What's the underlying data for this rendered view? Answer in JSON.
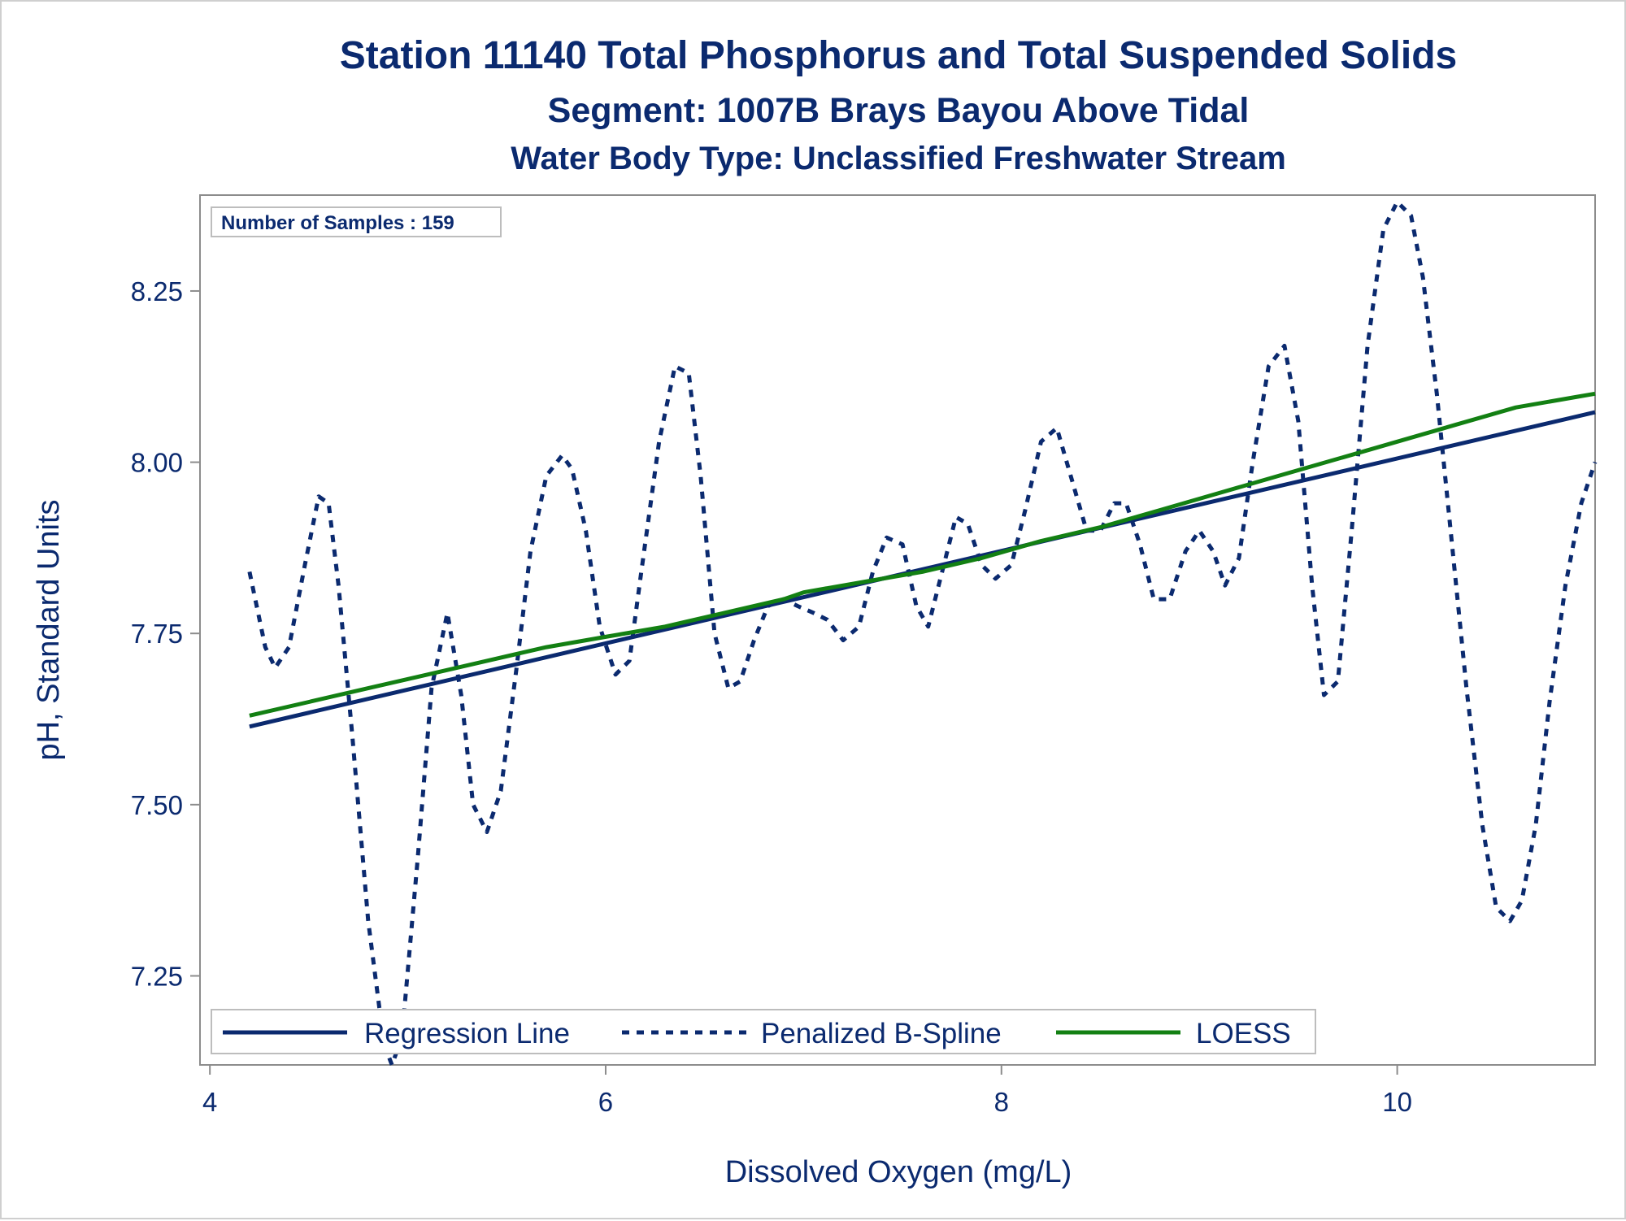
{
  "chart_data": {
    "type": "line",
    "title": "Station 11140  Total Phosphorus and Total Suspended Solids",
    "subtitle": "Segment: 1007B  Brays Bayou Above Tidal",
    "subtitle2": "Water Body Type: Unclassified Freshwater Stream",
    "xlabel": "Dissolved Oxygen (mg/L)",
    "ylabel": "pH, Standard Units",
    "xlim": [
      3.95,
      11.0
    ],
    "ylim": [
      7.12,
      8.39
    ],
    "x_ticks": [
      4,
      6,
      8,
      10
    ],
    "x_tick_labels": [
      "4",
      "6",
      "8",
      "10"
    ],
    "y_ticks": [
      7.25,
      7.5,
      7.75,
      8.0,
      8.25
    ],
    "y_tick_labels": [
      "7.25",
      "7.50",
      "7.75",
      "8.00",
      "8.25"
    ],
    "grid": false,
    "legend_position": "bottom-inside",
    "inset_label": "Number of Samples : 159",
    "series": [
      {
        "name": "Regression Line",
        "style": "solid",
        "color": "#0b2a6f",
        "x": [
          4.2,
          11.0
        ],
        "y": [
          7.614,
          8.073
        ]
      },
      {
        "name": "Penalized B-Spline",
        "style": "dashed",
        "color": "#0b2a6f",
        "x": [
          4.2,
          4.28,
          4.33,
          4.4,
          4.48,
          4.55,
          4.6,
          4.65,
          4.72,
          4.8,
          4.88,
          4.92,
          4.97,
          5.05,
          5.12,
          5.2,
          5.27,
          5.33,
          5.4,
          5.47,
          5.55,
          5.62,
          5.7,
          5.78,
          5.83,
          5.9,
          5.97,
          6.05,
          6.12,
          6.18,
          6.27,
          6.35,
          6.42,
          6.48,
          6.55,
          6.62,
          6.68,
          6.75,
          6.82,
          6.9,
          6.97,
          7.05,
          7.12,
          7.2,
          7.28,
          7.35,
          7.42,
          7.5,
          7.57,
          7.63,
          7.7,
          7.77,
          7.83,
          7.9,
          7.97,
          8.05,
          8.12,
          8.2,
          8.28,
          8.35,
          8.43,
          8.5,
          8.57,
          8.63,
          8.7,
          8.77,
          8.85,
          8.93,
          9.0,
          9.07,
          9.13,
          9.2,
          9.27,
          9.35,
          9.43,
          9.5,
          9.57,
          9.63,
          9.7,
          9.77,
          9.85,
          9.93,
          10.0,
          10.07,
          10.13,
          10.2,
          10.27,
          10.35,
          10.43,
          10.5,
          10.57,
          10.63,
          10.7,
          10.77,
          10.85,
          10.93,
          11.0
        ],
        "y": [
          7.84,
          7.73,
          7.7,
          7.73,
          7.85,
          7.95,
          7.94,
          7.82,
          7.6,
          7.33,
          7.15,
          7.12,
          7.16,
          7.42,
          7.67,
          7.78,
          7.66,
          7.5,
          7.46,
          7.52,
          7.7,
          7.87,
          7.98,
          8.01,
          7.99,
          7.9,
          7.76,
          7.69,
          7.71,
          7.84,
          8.03,
          8.14,
          8.13,
          7.98,
          7.75,
          7.67,
          7.68,
          7.74,
          7.79,
          7.8,
          7.79,
          7.78,
          7.77,
          7.74,
          7.76,
          7.84,
          7.89,
          7.88,
          7.79,
          7.76,
          7.84,
          7.92,
          7.91,
          7.85,
          7.83,
          7.85,
          7.93,
          8.03,
          8.05,
          7.98,
          7.9,
          7.9,
          7.94,
          7.94,
          7.88,
          7.8,
          7.8,
          7.87,
          7.9,
          7.87,
          7.82,
          7.86,
          8.0,
          8.14,
          8.17,
          8.06,
          7.82,
          7.66,
          7.68,
          7.9,
          8.17,
          8.34,
          8.38,
          8.36,
          8.27,
          8.1,
          7.9,
          7.67,
          7.47,
          7.35,
          7.33,
          7.36,
          7.47,
          7.65,
          7.82,
          7.94,
          8.0
        ]
      },
      {
        "name": "LOESS",
        "style": "solid",
        "color": "#138013",
        "x": [
          4.2,
          4.5,
          4.8,
          5.1,
          5.4,
          5.7,
          6.0,
          6.3,
          6.6,
          6.9,
          7.0,
          7.3,
          7.6,
          7.9,
          8.2,
          8.5,
          8.8,
          9.1,
          9.4,
          9.7,
          10.0,
          10.3,
          10.6,
          10.9,
          11.0
        ],
        "y": [
          7.63,
          7.65,
          7.67,
          7.69,
          7.71,
          7.73,
          7.745,
          7.76,
          7.78,
          7.8,
          7.81,
          7.825,
          7.84,
          7.86,
          7.885,
          7.905,
          7.93,
          7.955,
          7.98,
          8.005,
          8.03,
          8.055,
          8.08,
          8.095,
          8.1
        ]
      }
    ]
  }
}
